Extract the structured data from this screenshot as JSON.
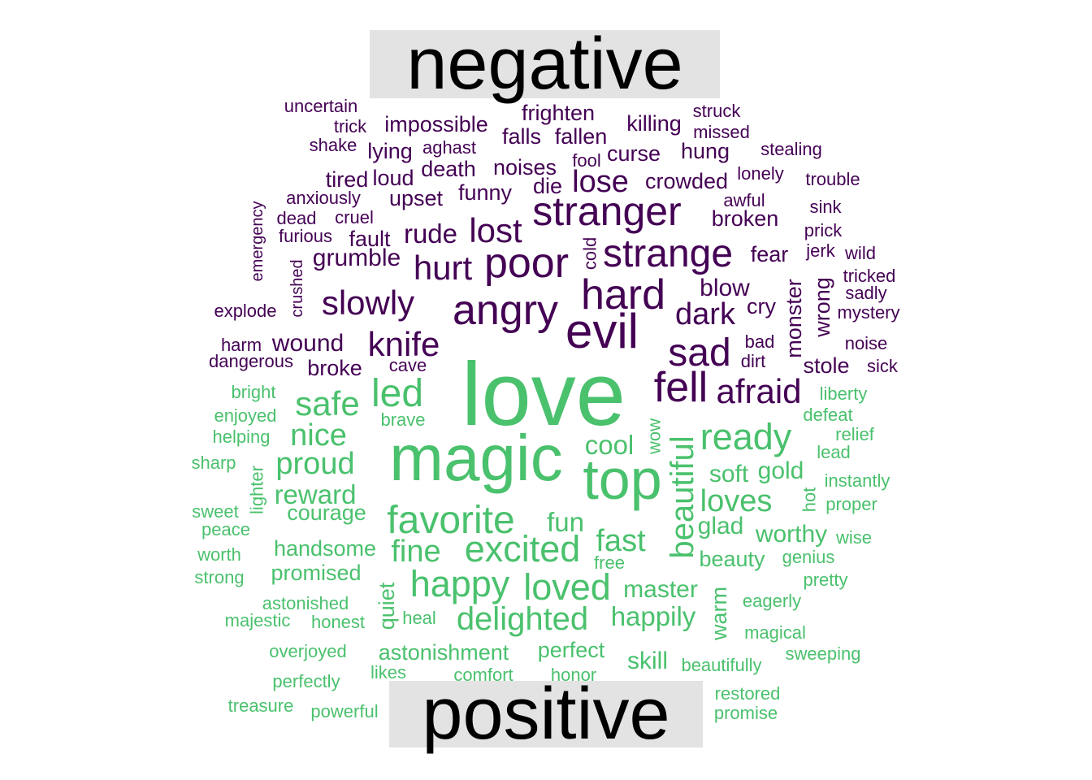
{
  "chart_data": {
    "type": "wordcloud",
    "groups": [
      "negative",
      "positive"
    ],
    "colors": {
      "negative": "#440154",
      "positive": "#4ac16d"
    },
    "words": [
      {
        "text": "uncertain",
        "group": "negative",
        "freq": 2
      },
      {
        "text": "trick",
        "group": "negative",
        "freq": 2
      },
      {
        "text": "shake",
        "group": "negative",
        "freq": 2
      },
      {
        "text": "impossible",
        "group": "negative",
        "freq": 3
      },
      {
        "text": "lying",
        "group": "negative",
        "freq": 3
      },
      {
        "text": "aghast",
        "group": "negative",
        "freq": 2
      },
      {
        "text": "frighten",
        "group": "negative",
        "freq": 3
      },
      {
        "text": "falls",
        "group": "negative",
        "freq": 3
      },
      {
        "text": "fallen",
        "group": "negative",
        "freq": 3
      },
      {
        "text": "killing",
        "group": "negative",
        "freq": 3
      },
      {
        "text": "struck",
        "group": "negative",
        "freq": 2
      },
      {
        "text": "missed",
        "group": "negative",
        "freq": 2
      },
      {
        "text": "hung",
        "group": "negative",
        "freq": 3
      },
      {
        "text": "curse",
        "group": "negative",
        "freq": 3
      },
      {
        "text": "fool",
        "group": "negative",
        "freq": 2
      },
      {
        "text": "stealing",
        "group": "negative",
        "freq": 2
      },
      {
        "text": "tired",
        "group": "negative",
        "freq": 3
      },
      {
        "text": "loud",
        "group": "negative",
        "freq": 3
      },
      {
        "text": "death",
        "group": "negative",
        "freq": 3
      },
      {
        "text": "noises",
        "group": "negative",
        "freq": 3
      },
      {
        "text": "lose",
        "group": "negative",
        "freq": 5
      },
      {
        "text": "crowded",
        "group": "negative",
        "freq": 3
      },
      {
        "text": "lonely",
        "group": "negative",
        "freq": 2
      },
      {
        "text": "trouble",
        "group": "negative",
        "freq": 2
      },
      {
        "text": "anxiously",
        "group": "negative",
        "freq": 2
      },
      {
        "text": "upset",
        "group": "negative",
        "freq": 3
      },
      {
        "text": "funny",
        "group": "negative",
        "freq": 3
      },
      {
        "text": "die",
        "group": "negative",
        "freq": 3
      },
      {
        "text": "awful",
        "group": "negative",
        "freq": 2
      },
      {
        "text": "emergency",
        "group": "negative",
        "freq": 2
      },
      {
        "text": "dead",
        "group": "negative",
        "freq": 2
      },
      {
        "text": "cruel",
        "group": "negative",
        "freq": 2
      },
      {
        "text": "stranger",
        "group": "negative",
        "freq": 8
      },
      {
        "text": "sink",
        "group": "negative",
        "freq": 2
      },
      {
        "text": "broken",
        "group": "negative",
        "freq": 3
      },
      {
        "text": "furious",
        "group": "negative",
        "freq": 2
      },
      {
        "text": "fault",
        "group": "negative",
        "freq": 3
      },
      {
        "text": "rude",
        "group": "negative",
        "freq": 4
      },
      {
        "text": "lost",
        "group": "negative",
        "freq": 6
      },
      {
        "text": "prick",
        "group": "negative",
        "freq": 2
      },
      {
        "text": "cold",
        "group": "negative",
        "freq": 2
      },
      {
        "text": "strange",
        "group": "negative",
        "freq": 8
      },
      {
        "text": "jerk",
        "group": "negative",
        "freq": 2
      },
      {
        "text": "wild",
        "group": "negative",
        "freq": 2
      },
      {
        "text": "grumble",
        "group": "negative",
        "freq": 3
      },
      {
        "text": "crushed",
        "group": "negative",
        "freq": 2
      },
      {
        "text": "hurt",
        "group": "negative",
        "freq": 6
      },
      {
        "text": "poor",
        "group": "negative",
        "freq": 8
      },
      {
        "text": "fear",
        "group": "negative",
        "freq": 3
      },
      {
        "text": "tricked",
        "group": "negative",
        "freq": 2
      },
      {
        "text": "monster",
        "group": "negative",
        "freq": 3
      },
      {
        "text": "sadly",
        "group": "negative",
        "freq": 2
      },
      {
        "text": "hard",
        "group": "negative",
        "freq": 8
      },
      {
        "text": "blow",
        "group": "negative",
        "freq": 3
      },
      {
        "text": "slowly",
        "group": "negative",
        "freq": 6
      },
      {
        "text": "wrong",
        "group": "negative",
        "freq": 3
      },
      {
        "text": "explode",
        "group": "negative",
        "freq": 2
      },
      {
        "text": "angry",
        "group": "negative",
        "freq": 8
      },
      {
        "text": "cry",
        "group": "negative",
        "freq": 3
      },
      {
        "text": "mystery",
        "group": "negative",
        "freq": 2
      },
      {
        "text": "dark",
        "group": "negative",
        "freq": 5
      },
      {
        "text": "evil",
        "group": "negative",
        "freq": 9
      },
      {
        "text": "knife",
        "group": "negative",
        "freq": 6
      },
      {
        "text": "harm",
        "group": "negative",
        "freq": 2
      },
      {
        "text": "wound",
        "group": "negative",
        "freq": 4
      },
      {
        "text": "bad",
        "group": "negative",
        "freq": 2
      },
      {
        "text": "noise",
        "group": "negative",
        "freq": 2
      },
      {
        "text": "sad",
        "group": "negative",
        "freq": 7
      },
      {
        "text": "dangerous",
        "group": "negative",
        "freq": 2
      },
      {
        "text": "cave",
        "group": "negative",
        "freq": 2
      },
      {
        "text": "dirt",
        "group": "negative",
        "freq": 2
      },
      {
        "text": "stole",
        "group": "negative",
        "freq": 3
      },
      {
        "text": "sick",
        "group": "negative",
        "freq": 2
      },
      {
        "text": "broke",
        "group": "negative",
        "freq": 3
      },
      {
        "text": "fell",
        "group": "negative",
        "freq": 8
      },
      {
        "text": "afraid",
        "group": "negative",
        "freq": 6
      },
      {
        "text": "love",
        "group": "positive",
        "freq": 20
      },
      {
        "text": "magic",
        "group": "positive",
        "freq": 14
      },
      {
        "text": "bright",
        "group": "positive",
        "freq": 2
      },
      {
        "text": "safe",
        "group": "positive",
        "freq": 6
      },
      {
        "text": "led",
        "group": "positive",
        "freq": 7
      },
      {
        "text": "liberty",
        "group": "positive",
        "freq": 2
      },
      {
        "text": "enjoyed",
        "group": "positive",
        "freq": 2
      },
      {
        "text": "brave",
        "group": "positive",
        "freq": 2
      },
      {
        "text": "defeat",
        "group": "positive",
        "freq": 2
      },
      {
        "text": "helping",
        "group": "positive",
        "freq": 2
      },
      {
        "text": "nice",
        "group": "positive",
        "freq": 5
      },
      {
        "text": "wow",
        "group": "positive",
        "freq": 2
      },
      {
        "text": "ready",
        "group": "positive",
        "freq": 6
      },
      {
        "text": "relief",
        "group": "positive",
        "freq": 2
      },
      {
        "text": "cool",
        "group": "positive",
        "freq": 4
      },
      {
        "text": "beautiful",
        "group": "positive",
        "freq": 7
      },
      {
        "text": "lead",
        "group": "positive",
        "freq": 2
      },
      {
        "text": "sharp",
        "group": "positive",
        "freq": 2
      },
      {
        "text": "proud",
        "group": "positive",
        "freq": 5
      },
      {
        "text": "top",
        "group": "positive",
        "freq": 10
      },
      {
        "text": "soft",
        "group": "positive",
        "freq": 4
      },
      {
        "text": "gold",
        "group": "positive",
        "freq": 4
      },
      {
        "text": "instantly",
        "group": "positive",
        "freq": 2
      },
      {
        "text": "lighter",
        "group": "positive",
        "freq": 2
      },
      {
        "text": "reward",
        "group": "positive",
        "freq": 4
      },
      {
        "text": "loves",
        "group": "positive",
        "freq": 5
      },
      {
        "text": "hot",
        "group": "positive",
        "freq": 2
      },
      {
        "text": "proper",
        "group": "positive",
        "freq": 2
      },
      {
        "text": "sweet",
        "group": "positive",
        "freq": 2
      },
      {
        "text": "courage",
        "group": "positive",
        "freq": 3
      },
      {
        "text": "favorite",
        "group": "positive",
        "freq": 7
      },
      {
        "text": "fun",
        "group": "positive",
        "freq": 4
      },
      {
        "text": "glad",
        "group": "positive",
        "freq": 3
      },
      {
        "text": "peace",
        "group": "positive",
        "freq": 2
      },
      {
        "text": "handsome",
        "group": "positive",
        "freq": 3
      },
      {
        "text": "fine",
        "group": "positive",
        "freq": 5
      },
      {
        "text": "excited",
        "group": "positive",
        "freq": 7
      },
      {
        "text": "fast",
        "group": "positive",
        "freq": 5
      },
      {
        "text": "worthy",
        "group": "positive",
        "freq": 3
      },
      {
        "text": "wise",
        "group": "positive",
        "freq": 2
      },
      {
        "text": "worth",
        "group": "positive",
        "freq": 2
      },
      {
        "text": "free",
        "group": "positive",
        "freq": 2
      },
      {
        "text": "beauty",
        "group": "positive",
        "freq": 3
      },
      {
        "text": "genius",
        "group": "positive",
        "freq": 2
      },
      {
        "text": "strong",
        "group": "positive",
        "freq": 2
      },
      {
        "text": "promised",
        "group": "positive",
        "freq": 3
      },
      {
        "text": "happy",
        "group": "positive",
        "freq": 6
      },
      {
        "text": "loved",
        "group": "positive",
        "freq": 6
      },
      {
        "text": "master",
        "group": "positive",
        "freq": 3
      },
      {
        "text": "pretty",
        "group": "positive",
        "freq": 2
      },
      {
        "text": "quiet",
        "group": "positive",
        "freq": 3
      },
      {
        "text": "warm",
        "group": "positive",
        "freq": 3
      },
      {
        "text": "astonished",
        "group": "positive",
        "freq": 2
      },
      {
        "text": "eagerly",
        "group": "positive",
        "freq": 2
      },
      {
        "text": "majestic",
        "group": "positive",
        "freq": 2
      },
      {
        "text": "honest",
        "group": "positive",
        "freq": 2
      },
      {
        "text": "heal",
        "group": "positive",
        "freq": 2
      },
      {
        "text": "delighted",
        "group": "positive",
        "freq": 5
      },
      {
        "text": "happily",
        "group": "positive",
        "freq": 4
      },
      {
        "text": "magical",
        "group": "positive",
        "freq": 2
      },
      {
        "text": "overjoyed",
        "group": "positive",
        "freq": 2
      },
      {
        "text": "astonishment",
        "group": "positive",
        "freq": 3
      },
      {
        "text": "perfect",
        "group": "positive",
        "freq": 3
      },
      {
        "text": "skill",
        "group": "positive",
        "freq": 3
      },
      {
        "text": "sweeping",
        "group": "positive",
        "freq": 2
      },
      {
        "text": "beautifully",
        "group": "positive",
        "freq": 2
      },
      {
        "text": "perfectly",
        "group": "positive",
        "freq": 2
      },
      {
        "text": "likes",
        "group": "positive",
        "freq": 2
      },
      {
        "text": "comfort",
        "group": "positive",
        "freq": 2
      },
      {
        "text": "honor",
        "group": "positive",
        "freq": 2
      },
      {
        "text": "restored",
        "group": "positive",
        "freq": 2
      },
      {
        "text": "treasure",
        "group": "positive",
        "freq": 2
      },
      {
        "text": "powerful",
        "group": "positive",
        "freq": 2
      },
      {
        "text": "promise",
        "group": "positive",
        "freq": 2
      }
    ]
  }
}
